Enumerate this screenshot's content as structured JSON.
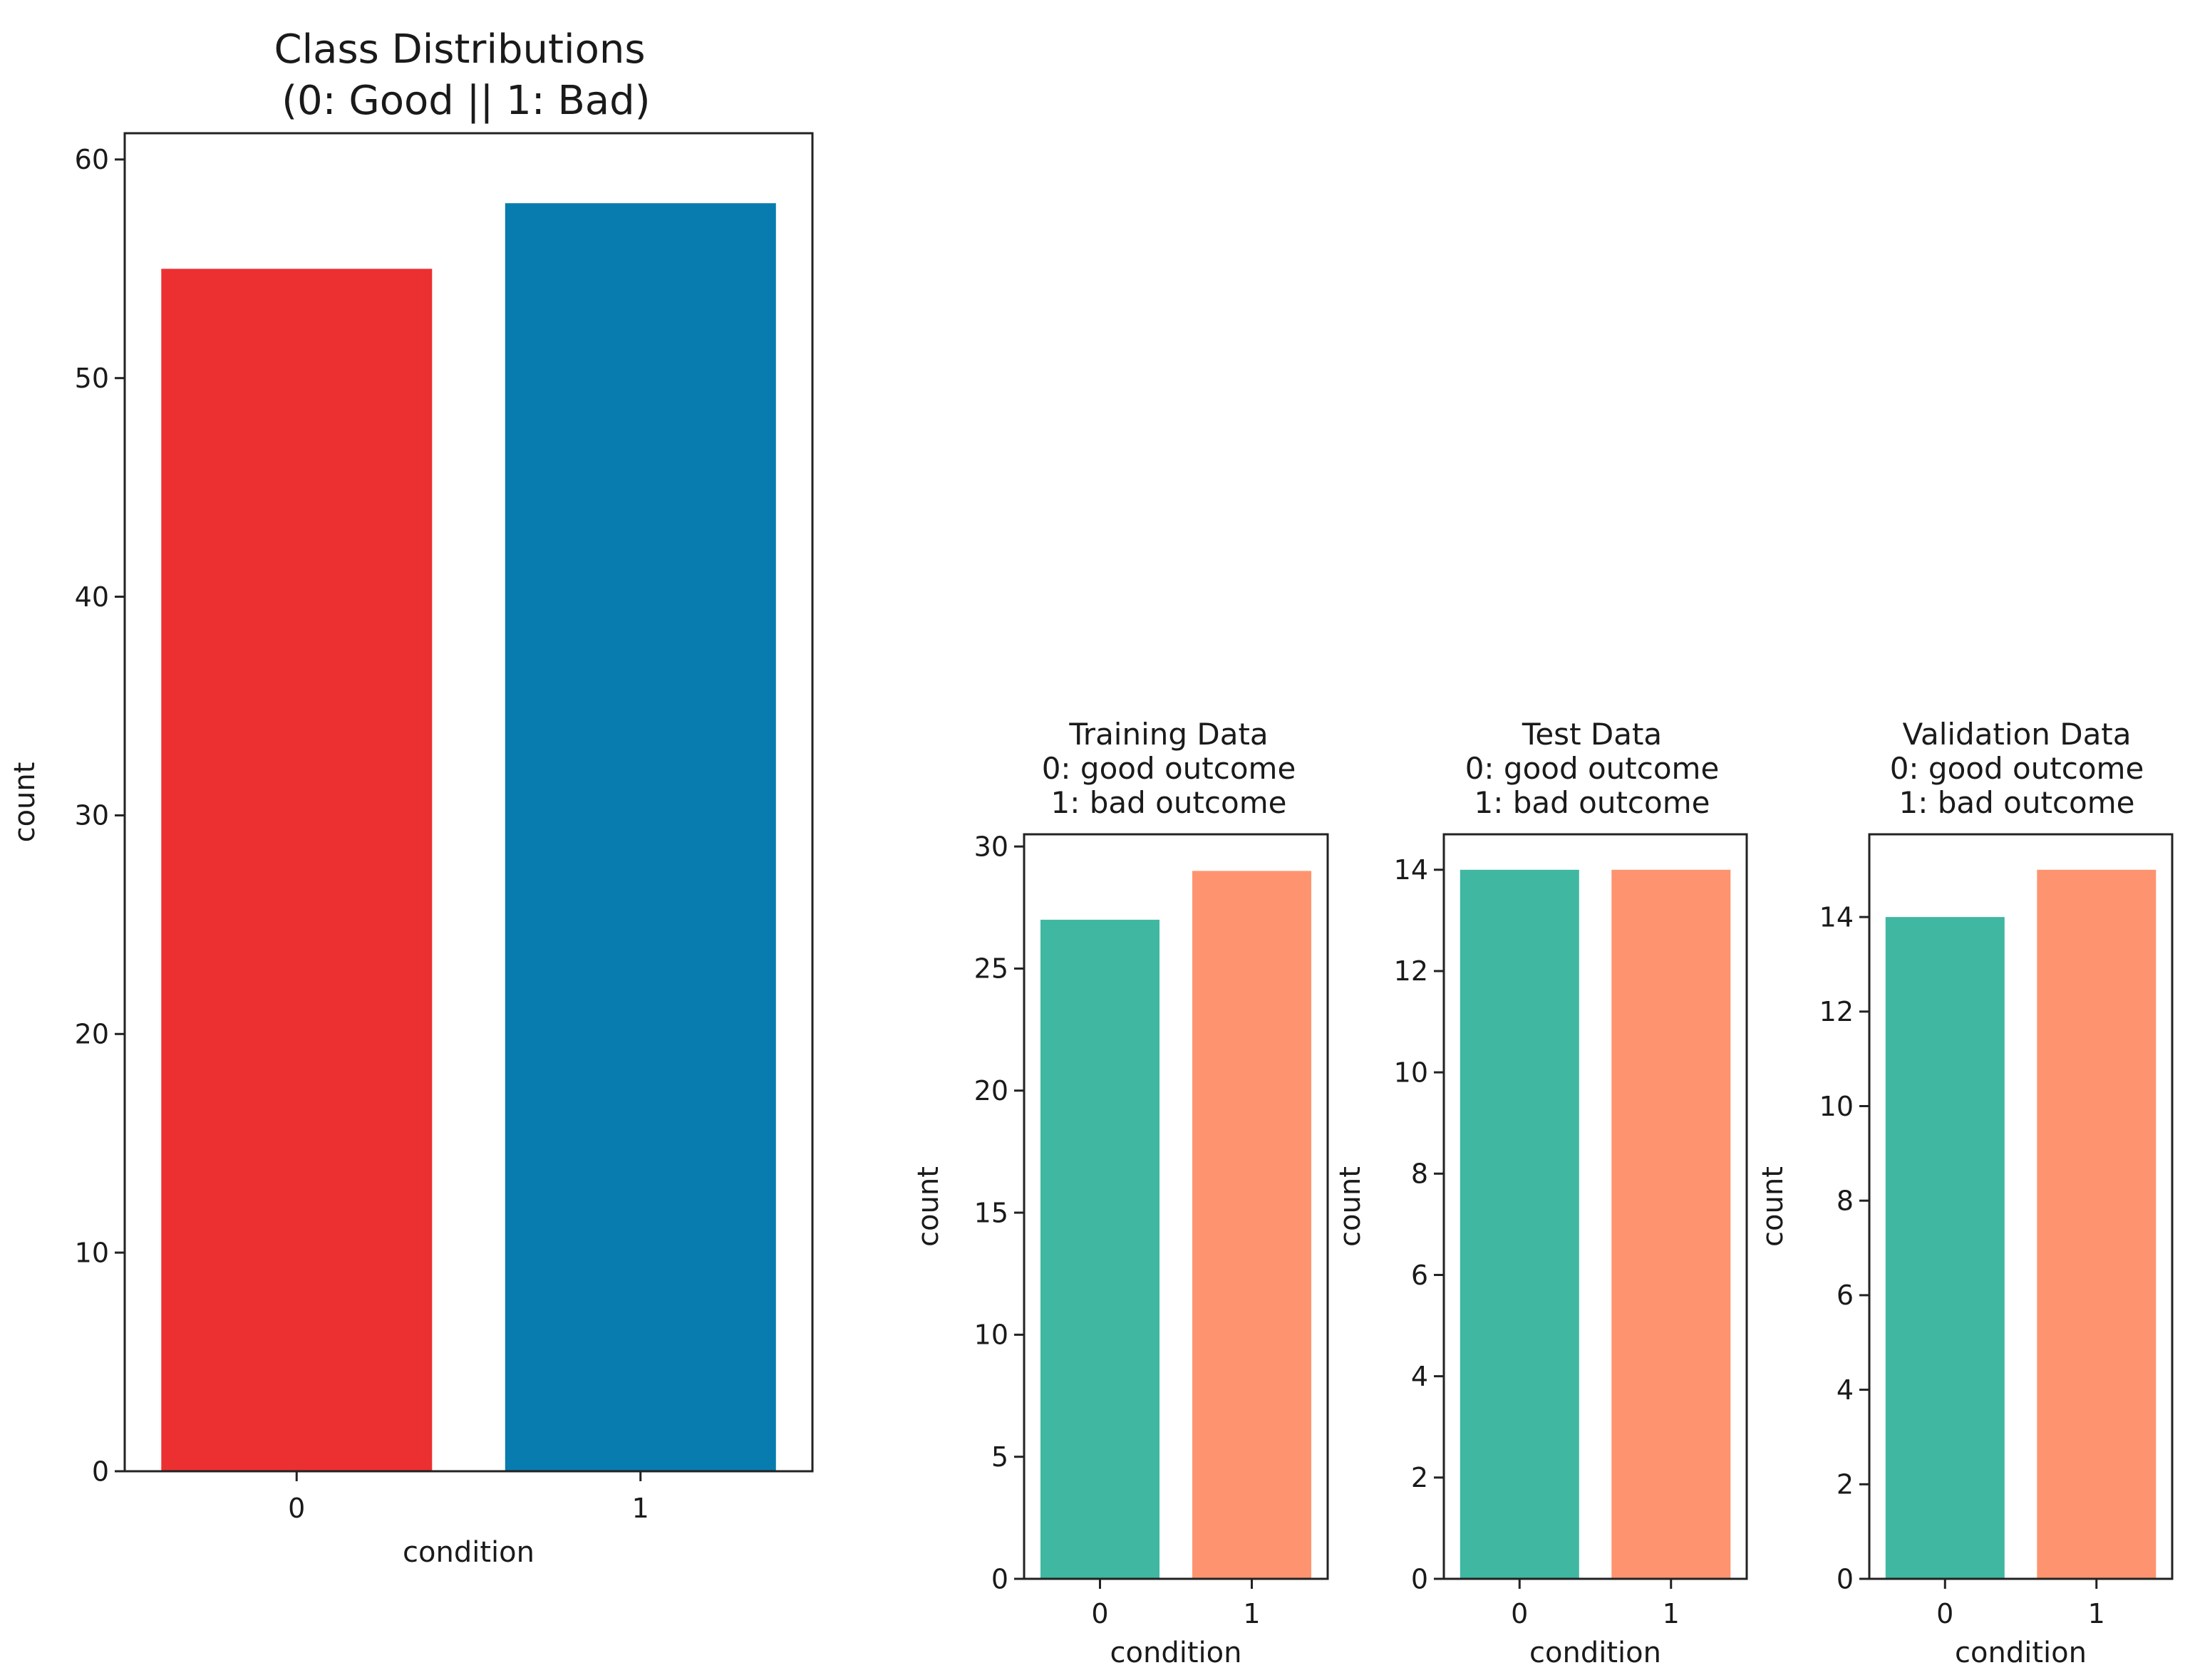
{
  "chart_data": [
    {
      "type": "bar",
      "title_lines": [
        "Class Distributions",
        " (0: Good || 1: Bad)"
      ],
      "xlabel": "condition",
      "ylabel": "count",
      "categories": [
        "0",
        "1"
      ],
      "values": [
        55,
        58
      ],
      "colors": [
        "#ec3031",
        "#087cae"
      ],
      "ylim": [
        0,
        61.2
      ],
      "yticks": [
        0,
        10,
        20,
        30,
        40,
        50,
        60
      ]
    },
    {
      "type": "bar",
      "title_lines": [
        "Training Data",
        "0: good outcome",
        "1: bad outcome"
      ],
      "xlabel": "condition",
      "ylabel": "count",
      "categories": [
        "0",
        "1"
      ],
      "values": [
        27,
        29
      ],
      "colors": [
        "#40b7a1",
        "#fd946f"
      ],
      "ylim": [
        0,
        30.5
      ],
      "yticks": [
        0,
        5,
        10,
        15,
        20,
        25,
        30
      ]
    },
    {
      "type": "bar",
      "title_lines": [
        "Test Data",
        "0: good outcome",
        "1: bad outcome"
      ],
      "xlabel": "condition",
      "ylabel": "count",
      "categories": [
        "0",
        "1"
      ],
      "values": [
        14,
        14
      ],
      "colors": [
        "#40b7a1",
        "#fd946f"
      ],
      "ylim": [
        0,
        14.7
      ],
      "yticks": [
        0,
        2,
        4,
        6,
        8,
        10,
        12,
        14
      ]
    },
    {
      "type": "bar",
      "title_lines": [
        "Validation Data",
        "0: good outcome",
        "1: bad outcome"
      ],
      "xlabel": "condition",
      "ylabel": "count",
      "categories": [
        "0",
        "1"
      ],
      "values": [
        14,
        15
      ],
      "colors": [
        "#40b7a1",
        "#fd946f"
      ],
      "ylim": [
        0,
        15.75
      ],
      "yticks": [
        0,
        2,
        4,
        6,
        8,
        10,
        12,
        14
      ]
    }
  ]
}
